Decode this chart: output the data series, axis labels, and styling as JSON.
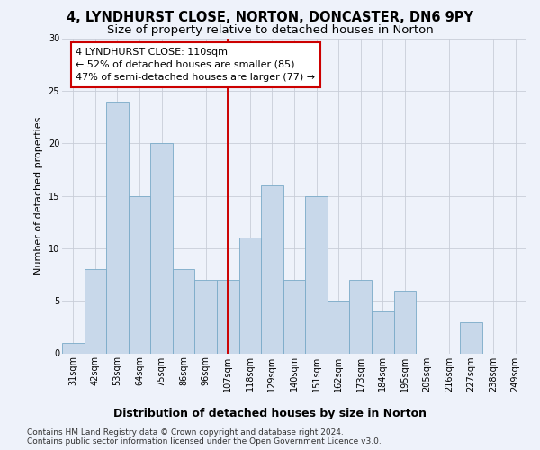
{
  "title": "4, LYNDHURST CLOSE, NORTON, DONCASTER, DN6 9PY",
  "subtitle": "Size of property relative to detached houses in Norton",
  "xlabel": "Distribution of detached houses by size in Norton",
  "ylabel": "Number of detached properties",
  "categories": [
    "31sqm",
    "42sqm",
    "53sqm",
    "64sqm",
    "75sqm",
    "86sqm",
    "96sqm",
    "107sqm",
    "118sqm",
    "129sqm",
    "140sqm",
    "151sqm",
    "162sqm",
    "173sqm",
    "184sqm",
    "195sqm",
    "205sqm",
    "216sqm",
    "227sqm",
    "238sqm",
    "249sqm"
  ],
  "values": [
    1,
    8,
    24,
    15,
    20,
    8,
    7,
    7,
    11,
    16,
    7,
    15,
    5,
    7,
    4,
    6,
    0,
    0,
    3,
    0,
    0
  ],
  "bar_color": "#c8d8ea",
  "bar_edge_color": "#7aaac8",
  "red_line_index": 7,
  "property_sqm": 110,
  "annotation_lines": [
    "4 LYNDHURST CLOSE: 110sqm",
    "← 52% of detached houses are smaller (85)",
    "47% of semi-detached houses are larger (77) →"
  ],
  "annotation_box_color": "#ffffff",
  "annotation_box_edge": "#cc0000",
  "ylim": [
    0,
    30
  ],
  "yticks": [
    0,
    5,
    10,
    15,
    20,
    25,
    30
  ],
  "footnote1": "Contains HM Land Registry data © Crown copyright and database right 2024.",
  "footnote2": "Contains public sector information licensed under the Open Government Licence v3.0.",
  "background_color": "#eef2fa",
  "grid_color": "#c8cdd8",
  "title_fontsize": 10.5,
  "subtitle_fontsize": 9.5,
  "xlabel_fontsize": 9,
  "ylabel_fontsize": 8,
  "tick_fontsize": 7,
  "annotation_fontsize": 8,
  "footnote_fontsize": 6.5
}
